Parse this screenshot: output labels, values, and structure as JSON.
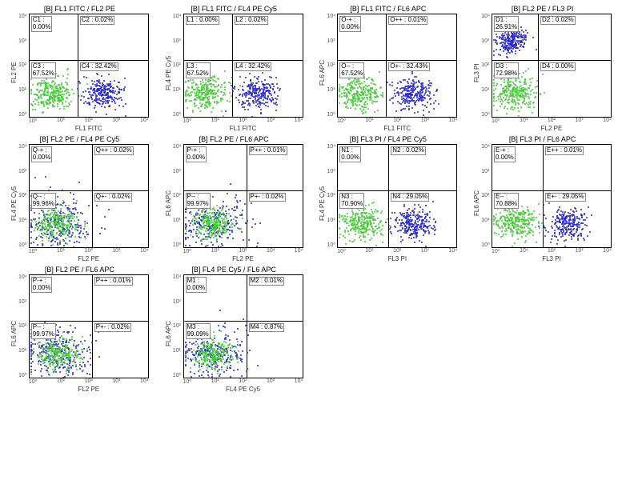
{
  "colors": {
    "green": "#3fcf2f",
    "blue": "#2626d8",
    "border": "#000000",
    "box_border": "#888888",
    "bg": "#ffffff"
  },
  "axis_ticks": [
    "10⁰",
    "10¹",
    "10²",
    "10³",
    "10⁴"
  ],
  "panels": [
    {
      "title": "[B] FL1 FITC / FL2 PE",
      "xlabel": "FL1 FITC",
      "ylabel": "FL2 PE",
      "split_x": 0.4,
      "split_y": 0.56,
      "q1": "C1 :\n0.00%",
      "q2": "C2 : 0.02%",
      "q3": "C3 :\n67.52%",
      "q4": "C4 : 32.42%",
      "cluster_green_q": 3,
      "cluster_blue_q": 4
    },
    {
      "title": "[B] FL1 FITC / FL4 PE Cy5",
      "xlabel": "FL1 FITC",
      "ylabel": "FL4 PE Cy5",
      "split_x": 0.4,
      "split_y": 0.56,
      "q1": "L1 : 0.00%",
      "q2": "L2 : 0.02%",
      "q3": "L3 :\n67.52%",
      "q4": "L4 : 32.42%",
      "cluster_green_q": 3,
      "cluster_blue_q": 4
    },
    {
      "title": "[B] FL1 FITC / FL6 APC",
      "xlabel": "FL1 FITC",
      "ylabel": "FL6 APC",
      "split_x": 0.4,
      "split_y": 0.56,
      "q1": "O-+ :\n0.00%",
      "q2": "O++ : 0.01%",
      "q3": "O-- :\n67.52%",
      "q4": "O+- : 32.43%",
      "cluster_green_q": 3,
      "cluster_blue_q": 4
    },
    {
      "title": "[B] FL2 PE / FL3 PI",
      "xlabel": "FL2 PE",
      "ylabel": "FL3 PI",
      "split_x": 0.38,
      "split_y": 0.56,
      "q1": "D1 :\n26.91%",
      "q2": "D2 : 0.02%",
      "q3": "D3 :\n72.98%",
      "q4": "D4 : 0.00%",
      "cluster_green_q": 3,
      "cluster_blue_q": 1
    },
    {
      "title": "[B] FL2 PE / FL4 PE Cy5",
      "xlabel": "FL2 PE",
      "ylabel": "FL4 PE Cy5",
      "split_x": 0.52,
      "split_y": 0.56,
      "q1": "Q-+ :\n0.00%",
      "q2": "Q++ : 0.02%",
      "q3": "Q-- :\n99.96%",
      "q4": "Q+- : 0.02%",
      "cluster_green_q": 3,
      "cluster_blue_q": 3
    },
    {
      "title": "[B] FL2 PE / FL6 APC",
      "xlabel": "FL2 PE",
      "ylabel": "FL6 APC",
      "split_x": 0.52,
      "split_y": 0.56,
      "q1": "P-+ :\n0.00%",
      "q2": "P++ : 0.01%",
      "q3": "P-- :\n99.97%",
      "q4": "P+- : 0.02%",
      "cluster_green_q": 3,
      "cluster_blue_q": 3
    },
    {
      "title": "[B] FL3 PI / FL4 PE Cy5",
      "xlabel": "FL3 PI",
      "ylabel": "FL4 PE Cy5",
      "split_x": 0.42,
      "split_y": 0.56,
      "q1": "N1 :\n0.00%",
      "q2": "N2 : 0.02%",
      "q3": "N3 :\n70.90%",
      "q4": "N4 : 29.05%",
      "cluster_green_q": 3,
      "cluster_blue_q": 4
    },
    {
      "title": "[B] FL3 PI / FL6 APC",
      "xlabel": "FL3 PI",
      "ylabel": "FL6 APC",
      "split_x": 0.42,
      "split_y": 0.56,
      "q1": "E-+ :\n0.00%",
      "q2": "E++ : 0.01%",
      "q3": "E-- :\n70.88%",
      "q4": "E+- : 29.05%",
      "cluster_green_q": 3,
      "cluster_blue_q": 4
    },
    {
      "title": "[B] FL2 PE / FL6 APC",
      "xlabel": "FL2 PE",
      "ylabel": "FL6 APC",
      "split_x": 0.52,
      "split_y": 0.56,
      "q1": "P-+ :\n0.00%",
      "q2": "P++ : 0.01%",
      "q3": "P-- :\n99.97%",
      "q4": "P+- : 0.02%",
      "cluster_green_q": 3,
      "cluster_blue_q": 3
    },
    {
      "title": "[B] FL4 PE Cy5 / FL6 APC",
      "xlabel": "FL4 PE Cy5",
      "ylabel": "FL6 APC",
      "split_x": 0.52,
      "split_y": 0.56,
      "q1": "M1 :\n0.00%",
      "q2": "M2 : 0.01%",
      "q3": "M3 :\n99.09%",
      "q4": "M4 : 0.87%",
      "cluster_green_q": 3,
      "cluster_blue_q": 3
    }
  ]
}
